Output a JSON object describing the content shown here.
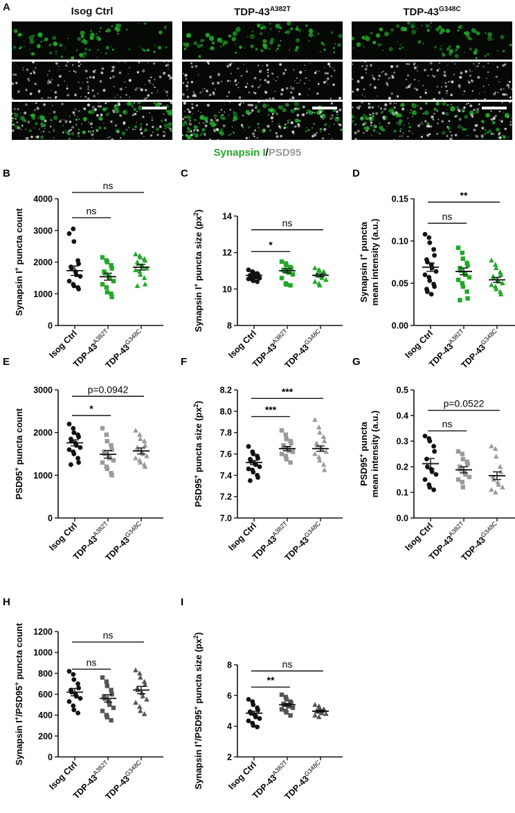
{
  "panel_a": {
    "letter": "A",
    "columns": [
      {
        "title": "Isog Ctrl",
        "sup": ""
      },
      {
        "title": "TDP-43",
        "sup": "A382T"
      },
      {
        "title": "TDP-43",
        "sup": "G348C"
      }
    ],
    "stain_caption": {
      "part1": "Synapsin I",
      "sep": "/",
      "part2": "PSD95"
    },
    "colors": {
      "synapsin": "#22a82a",
      "psd95": "#9a9a9a"
    }
  },
  "groups": [
    "Isog Ctrl",
    "TDP-43",
    "TDP-43"
  ],
  "group_sups": [
    "",
    "A382T",
    "G348C"
  ],
  "chart_data": [
    {
      "id": "B",
      "type": "scatter",
      "ylabel": "Synapsin I",
      "ylabel_sup": "+",
      "ylabel_rest": " puncta count",
      "ylabel2": "",
      "ylim": [
        0,
        4000
      ],
      "ticks": [
        0,
        1000,
        2000,
        3000,
        4000
      ],
      "colors": [
        "#111111",
        "#22a82a",
        "#22a82a"
      ],
      "series": [
        {
          "mean": 1730,
          "sem": 150,
          "points": [
            2900,
            3050,
            2650,
            2050,
            1950,
            1850,
            1800,
            1700,
            1600,
            1550,
            1400,
            1300,
            1250,
            1200,
            1150
          ]
        },
        {
          "mean": 1540,
          "sem": 110,
          "points": [
            2150,
            2050,
            2000,
            1900,
            1800,
            1700,
            1650,
            1550,
            1500,
            1400,
            1300,
            1200,
            1050,
            1000,
            900
          ]
        },
        {
          "mean": 1840,
          "sem": 90,
          "points": [
            2250,
            2200,
            2150,
            2100,
            2050,
            2000,
            1950,
            1900,
            1850,
            1800,
            1750,
            1700,
            1600,
            1500,
            1300,
            1250
          ]
        }
      ],
      "sig": [
        {
          "label": "ns",
          "from": 0,
          "to": 1,
          "y": 3400
        },
        {
          "label": "ns",
          "from": 0,
          "to": 2,
          "y": 4200
        }
      ]
    },
    {
      "id": "C",
      "type": "scatter",
      "ylabel": "Synapsin I",
      "ylabel_sup": "+",
      "ylabel_rest": " puncta size (px",
      "ylabel_rest_sup": "2",
      "ylabel_end": ")",
      "ylabel2": "",
      "ylim": [
        8,
        14
      ],
      "ticks": [
        8,
        10,
        12,
        14
      ],
      "colors": [
        "#111111",
        "#22a82a",
        "#22a82a"
      ],
      "series": [
        {
          "mean": 10.75,
          "sem": 0.07,
          "points": [
            11.05,
            10.95,
            10.9,
            10.85,
            10.8,
            10.75,
            10.7,
            10.7,
            10.65,
            10.6,
            10.55,
            10.5,
            10.45,
            10.4
          ]
        },
        {
          "mean": 11.0,
          "sem": 0.12,
          "points": [
            11.5,
            11.4,
            11.3,
            11.2,
            11.1,
            11.05,
            11.0,
            10.95,
            10.9,
            10.8,
            10.6,
            10.3,
            10.25,
            10.2
          ]
        },
        {
          "mean": 10.75,
          "sem": 0.08,
          "points": [
            11.15,
            11.05,
            11.0,
            10.95,
            10.9,
            10.8,
            10.75,
            10.7,
            10.6,
            10.5,
            10.4,
            10.3,
            10.2
          ]
        }
      ],
      "sig": [
        {
          "label": "*",
          "from": 0,
          "to": 1,
          "y": 12.05
        },
        {
          "label": "ns",
          "from": 0,
          "to": 2,
          "y": 13.25
        }
      ]
    },
    {
      "id": "D",
      "type": "scatter",
      "ylabel": "Synapsin I",
      "ylabel_sup": "+",
      "ylabel_rest": " puncta",
      "ylabel2": "mean intensity (a.u.)",
      "ylim": [
        0,
        0.15
      ],
      "ticks": [
        0.0,
        0.05,
        0.1,
        0.15
      ],
      "tick_decimals": 2,
      "colors": [
        "#111111",
        "#22a82a",
        "#22a82a"
      ],
      "series": [
        {
          "mean": 0.069,
          "sem": 0.005,
          "points": [
            0.108,
            0.104,
            0.098,
            0.09,
            0.083,
            0.078,
            0.075,
            0.072,
            0.068,
            0.064,
            0.06,
            0.057,
            0.053,
            0.049,
            0.046,
            0.043,
            0.04,
            0.037
          ]
        },
        {
          "mean": 0.064,
          "sem": 0.004,
          "points": [
            0.092,
            0.086,
            0.079,
            0.074,
            0.071,
            0.068,
            0.065,
            0.062,
            0.06,
            0.057,
            0.054,
            0.05,
            0.046,
            0.04,
            0.032,
            0.03
          ]
        },
        {
          "mean": 0.054,
          "sem": 0.003,
          "points": [
            0.077,
            0.072,
            0.068,
            0.063,
            0.06,
            0.058,
            0.056,
            0.054,
            0.052,
            0.05,
            0.048,
            0.046,
            0.043,
            0.04,
            0.037
          ]
        }
      ],
      "sig": [
        {
          "label": "ns",
          "from": 0,
          "to": 1,
          "y": 0.121
        },
        {
          "label": "**",
          "from": 0,
          "to": 2,
          "y": 0.146
        }
      ]
    },
    {
      "id": "E",
      "type": "scatter",
      "ylabel": "PSD95",
      "ylabel_sup": "+",
      "ylabel_rest": " puncta count",
      "ylabel2": "",
      "ylim": [
        0,
        3000
      ],
      "ticks": [
        0,
        1000,
        2000,
        3000
      ],
      "colors": [
        "#111111",
        "#9a9a9a",
        "#9a9a9a"
      ],
      "series": [
        {
          "mean": 1760,
          "sem": 70,
          "points": [
            2200,
            2100,
            2000,
            1950,
            1900,
            1850,
            1800,
            1750,
            1700,
            1650,
            1600,
            1550,
            1500,
            1400,
            1300,
            1250
          ]
        },
        {
          "mean": 1490,
          "sem": 90,
          "points": [
            2100,
            1950,
            1800,
            1700,
            1600,
            1550,
            1500,
            1450,
            1400,
            1350,
            1300,
            1200,
            1150,
            1050,
            1000
          ]
        },
        {
          "mean": 1570,
          "sem": 70,
          "points": [
            2050,
            1950,
            1850,
            1800,
            1700,
            1650,
            1600,
            1550,
            1500,
            1450,
            1400,
            1350,
            1300,
            1250,
            1200
          ]
        }
      ],
      "sig": [
        {
          "label": "*",
          "from": 0,
          "to": 1,
          "y": 2400
        },
        {
          "label": "p=0.0942",
          "from": 0,
          "to": 2,
          "y": 2850
        }
      ]
    },
    {
      "id": "F",
      "type": "scatter",
      "ylabel": "PSD95",
      "ylabel_sup": "+",
      "ylabel_rest": " puncta size (px",
      "ylabel_rest_sup": "2",
      "ylabel_end": ")",
      "ylabel2": "",
      "ylim": [
        7.0,
        8.2
      ],
      "ticks": [
        7.0,
        7.2,
        7.4,
        7.6,
        7.8,
        8.0,
        8.2
      ],
      "tick_decimals": 1,
      "colors": [
        "#111111",
        "#9a9a9a",
        "#9a9a9a"
      ],
      "series": [
        {
          "mean": 7.52,
          "sem": 0.02,
          "points": [
            7.67,
            7.62,
            7.6,
            7.58,
            7.56,
            7.55,
            7.53,
            7.51,
            7.5,
            7.48,
            7.46,
            7.45,
            7.43,
            7.4,
            7.38,
            7.35
          ]
        },
        {
          "mean": 7.65,
          "sem": 0.02,
          "points": [
            7.82,
            7.78,
            7.74,
            7.72,
            7.7,
            7.68,
            7.66,
            7.65,
            7.63,
            7.62,
            7.6,
            7.58,
            7.55,
            7.52
          ]
        },
        {
          "mean": 7.65,
          "sem": 0.025,
          "points": [
            7.92,
            7.85,
            7.8,
            7.76,
            7.72,
            7.7,
            7.68,
            7.66,
            7.64,
            7.62,
            7.6,
            7.57,
            7.54,
            7.5,
            7.45
          ]
        }
      ],
      "sig": [
        {
          "label": "***",
          "from": 0,
          "to": 1,
          "y": 7.95
        },
        {
          "label": "***",
          "from": 0,
          "to": 2,
          "y": 8.12
        }
      ]
    },
    {
      "id": "G",
      "type": "scatter",
      "ylabel": "PSD95",
      "ylabel_sup": "+",
      "ylabel_rest": " puncta",
      "ylabel2": "mean intensity (a.u.)",
      "ylim": [
        0,
        0.5
      ],
      "ticks": [
        0.0,
        0.1,
        0.2,
        0.3,
        0.4,
        0.5
      ],
      "tick_decimals": 1,
      "colors": [
        "#111111",
        "#9a9a9a",
        "#9a9a9a"
      ],
      "series": [
        {
          "mean": 0.212,
          "sem": 0.02,
          "points": [
            0.32,
            0.31,
            0.3,
            0.28,
            0.26,
            0.23,
            0.2,
            0.19,
            0.18,
            0.17,
            0.15,
            0.13,
            0.12,
            0.11
          ]
        },
        {
          "mean": 0.188,
          "sem": 0.012,
          "points": [
            0.26,
            0.25,
            0.23,
            0.22,
            0.21,
            0.2,
            0.19,
            0.18,
            0.17,
            0.16,
            0.15,
            0.14,
            0.12
          ]
        },
        {
          "mean": 0.165,
          "sem": 0.015,
          "points": [
            0.28,
            0.27,
            0.24,
            0.2,
            0.18,
            0.16,
            0.15,
            0.14,
            0.13,
            0.12,
            0.11,
            0.1
          ]
        }
      ],
      "sig": [
        {
          "label": "ns",
          "from": 0,
          "to": 1,
          "y": 0.34
        },
        {
          "label": "p=0.0522",
          "from": 0,
          "to": 2,
          "y": 0.42
        }
      ]
    },
    {
      "id": "H",
      "type": "scatter",
      "ylabel": "Synapsin I",
      "ylabel_sup": "+",
      "ylabel_rest": "/PSD95",
      "ylabel_rest_sup": "+",
      "ylabel_end": " puncta count",
      "ylabel2": "",
      "ylim": [
        0,
        1200
      ],
      "ticks": [
        0,
        200,
        400,
        600,
        800,
        1000,
        1200
      ],
      "colors": [
        "#111111",
        "#555555",
        "#555555"
      ],
      "series": [
        {
          "mean": 620,
          "sem": 35,
          "points": [
            820,
            790,
            740,
            700,
            660,
            640,
            620,
            600,
            580,
            560,
            530,
            490,
            450,
            420
          ]
        },
        {
          "mean": 560,
          "sem": 35,
          "points": [
            760,
            720,
            680,
            640,
            600,
            580,
            560,
            530,
            500,
            470,
            440,
            400,
            380,
            350
          ]
        },
        {
          "mean": 640,
          "sem": 35,
          "points": [
            830,
            800,
            760,
            720,
            690,
            660,
            640,
            610,
            580,
            550,
            520,
            480,
            440,
            410
          ]
        }
      ],
      "sig": [
        {
          "label": "ns",
          "from": 0,
          "to": 1,
          "y": 840
        },
        {
          "label": "ns",
          "from": 0,
          "to": 2,
          "y": 1100
        }
      ]
    },
    {
      "id": "I",
      "type": "scatter",
      "ylabel": "Synapsin I",
      "ylabel_sup": "+",
      "ylabel_rest": "/PSD95",
      "ylabel_rest_sup": "+",
      "ylabel_end": " puncta size (px",
      "ylabel_end_sup": "2",
      "ylabel_final": ")",
      "ylabel2": "",
      "ylim": [
        2,
        8
      ],
      "ticks": [
        2,
        4,
        6,
        8
      ],
      "colors": [
        "#111111",
        "#555555",
        "#555555"
      ],
      "series": [
        {
          "mean": 4.85,
          "sem": 0.13,
          "points": [
            5.75,
            5.6,
            5.4,
            5.2,
            5.05,
            4.95,
            4.85,
            4.75,
            4.6,
            4.5,
            4.35,
            4.2,
            4.05,
            3.95
          ]
        },
        {
          "mean": 5.4,
          "sem": 0.08,
          "points": [
            6.05,
            5.9,
            5.75,
            5.6,
            5.5,
            5.45,
            5.4,
            5.35,
            5.3,
            5.2,
            5.1,
            5.0,
            4.9,
            4.7
          ]
        },
        {
          "mean": 4.98,
          "sem": 0.06,
          "points": [
            5.4,
            5.3,
            5.2,
            5.1,
            5.05,
            5.0,
            4.95,
            4.9,
            4.85,
            4.8,
            4.7,
            4.6
          ]
        }
      ],
      "sig": [
        {
          "label": "**",
          "from": 0,
          "to": 1,
          "y": 6.55
        },
        {
          "label": "ns",
          "from": 0,
          "to": 2,
          "y": 7.6
        }
      ]
    }
  ]
}
